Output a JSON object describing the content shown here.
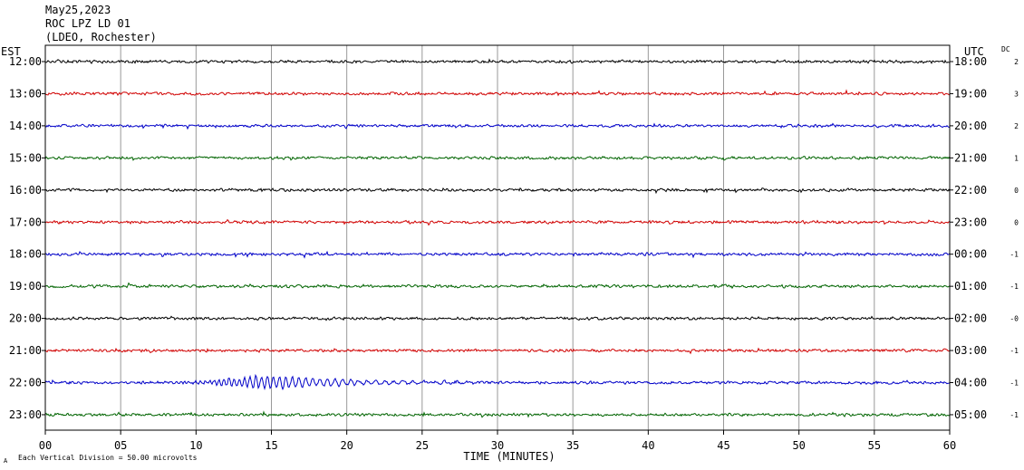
{
  "header": {
    "date": "May25,2023",
    "station": "ROC LPZ LD 01",
    "network": "(LDEO, Rochester)"
  },
  "chart_data": {
    "type": "line",
    "title": "ROC LPZ LD 01",
    "date": "May25,2023",
    "left_axis_label": "EST",
    "right_axis_label": "UTC",
    "dc_label": "DC",
    "xlabel": "TIME (MINUTES)",
    "xlim": [
      0,
      60
    ],
    "x_ticks": [
      "00",
      "05",
      "10",
      "15",
      "20",
      "25",
      "30",
      "35",
      "40",
      "45",
      "50",
      "55",
      "60"
    ],
    "footer_note": "Each Vertical Division =   50.00 microvolts",
    "footer_mark": "A",
    "grid": true,
    "colors": [
      "#000000",
      "#d00000",
      "#0000c8",
      "#006400"
    ],
    "rows": [
      {
        "est": "12:00",
        "utc": "18:00",
        "dc": "2"
      },
      {
        "est": "13:00",
        "utc": "19:00",
        "dc": "3"
      },
      {
        "est": "14:00",
        "utc": "20:00",
        "dc": "2"
      },
      {
        "est": "15:00",
        "utc": "21:00",
        "dc": "1"
      },
      {
        "est": "16:00",
        "utc": "22:00",
        "dc": "0"
      },
      {
        "est": "17:00",
        "utc": "23:00",
        "dc": "0"
      },
      {
        "est": "18:00",
        "utc": "00:00",
        "dc": "-1"
      },
      {
        "est": "19:00",
        "utc": "01:00",
        "dc": "-1"
      },
      {
        "est": "20:00",
        "utc": "02:00",
        "dc": "-0"
      },
      {
        "est": "21:00",
        "utc": "03:00",
        "dc": "-1"
      },
      {
        "est": "22:00",
        "utc": "04:00",
        "dc": "-1"
      },
      {
        "est": "23:00",
        "utc": "05:00",
        "dc": "-1"
      }
    ],
    "events": [
      {
        "row": 10,
        "start_min": 9.5,
        "end_min": 29,
        "peak_min": 15,
        "note": "surface-wave train"
      }
    ]
  }
}
